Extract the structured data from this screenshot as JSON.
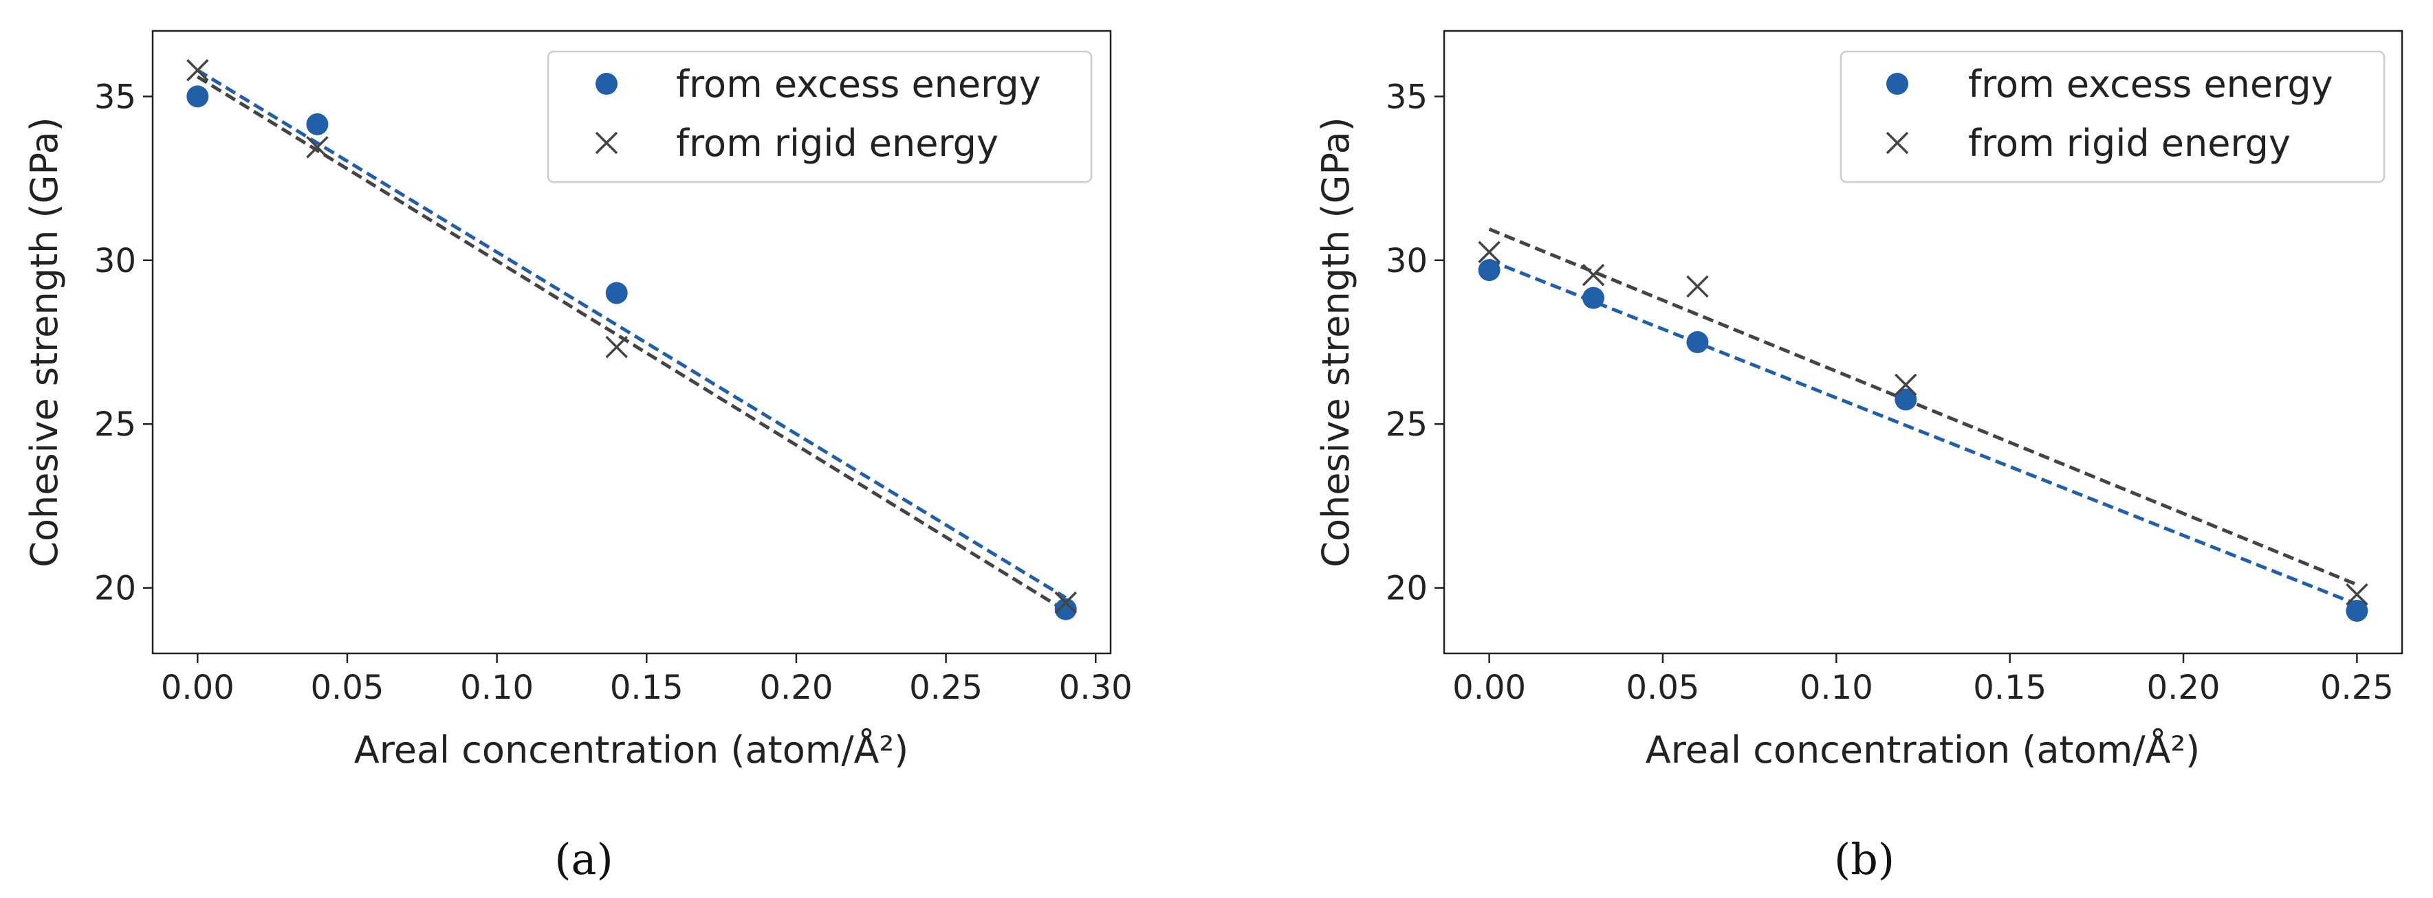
{
  "colors": {
    "excess": "#2160a8",
    "rigid": "#444444",
    "axis": "#222222"
  },
  "chart_data": [
    {
      "type": "scatter",
      "caption": "(a)",
      "xlabel": "Areal concentration (atom/Å²)",
      "ylabel": "Cohesive strength (GPa)",
      "xlim": [
        -0.015,
        0.305
      ],
      "ylim": [
        18,
        37
      ],
      "xticks": [
        0.0,
        0.05,
        0.1,
        0.15,
        0.2,
        0.25,
        0.3
      ],
      "xtick_labels": [
        "0.00",
        "0.05",
        "0.10",
        "0.15",
        "0.20",
        "0.25",
        "0.30"
      ],
      "yticks": [
        20,
        25,
        30,
        35
      ],
      "ytick_labels": [
        "20",
        "25",
        "30",
        "35"
      ],
      "legend": {
        "position": "top-right",
        "entries": [
          "from excess energy",
          "from rigid energy"
        ]
      },
      "series": [
        {
          "name": "from excess energy",
          "marker": "circle",
          "x": [
            0.0,
            0.04,
            0.14,
            0.29
          ],
          "y": [
            35.0,
            34.15,
            29.0,
            19.35
          ],
          "fit": {
            "x": [
              0.0,
              0.29
            ],
            "y": [
              35.8,
              19.7
            ]
          }
        },
        {
          "name": "from rigid energy",
          "marker": "x",
          "x": [
            0.0,
            0.04,
            0.14,
            0.29
          ],
          "y": [
            35.8,
            33.45,
            27.35,
            19.55
          ],
          "fit": {
            "x": [
              0.0,
              0.29
            ],
            "y": [
              35.6,
              19.3
            ]
          }
        }
      ]
    },
    {
      "type": "scatter",
      "caption": "(b)",
      "xlabel": "Areal concentration (atom/Å²)",
      "ylabel": "Cohesive strength (GPa)",
      "xlim": [
        -0.013,
        0.263
      ],
      "ylim": [
        18,
        37
      ],
      "xticks": [
        0.0,
        0.05,
        0.1,
        0.15,
        0.2,
        0.25
      ],
      "xtick_labels": [
        "0.00",
        "0.05",
        "0.10",
        "0.15",
        "0.20",
        "0.25"
      ],
      "yticks": [
        20,
        25,
        30,
        35
      ],
      "ytick_labels": [
        "20",
        "25",
        "30",
        "35"
      ],
      "legend": {
        "position": "top-right",
        "entries": [
          "from excess energy",
          "from rigid energy"
        ]
      },
      "series": [
        {
          "name": "from excess energy",
          "marker": "circle",
          "x": [
            0.0,
            0.03,
            0.06,
            0.12,
            0.25
          ],
          "y": [
            29.7,
            28.85,
            27.5,
            25.75,
            19.3
          ],
          "fit": {
            "x": [
              0.0,
              0.25
            ],
            "y": [
              30.0,
              19.5
            ]
          }
        },
        {
          "name": "from rigid energy",
          "marker": "x",
          "x": [
            0.0,
            0.03,
            0.06,
            0.12,
            0.25
          ],
          "y": [
            30.25,
            29.55,
            29.2,
            26.2,
            19.8
          ],
          "fit": {
            "x": [
              0.0,
              0.25
            ],
            "y": [
              30.95,
              20.1
            ]
          }
        }
      ]
    }
  ]
}
